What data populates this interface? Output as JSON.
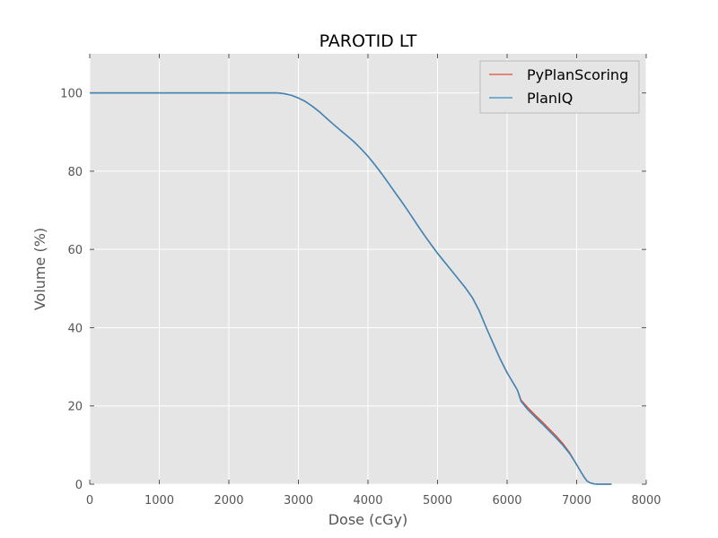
{
  "chart_data": {
    "type": "line",
    "title": "PAROTID LT",
    "xlabel": "Dose (cGy)",
    "ylabel": "Volume (%)",
    "xlim": [
      0,
      8000
    ],
    "ylim": [
      0,
      110
    ],
    "xticks": [
      0,
      1000,
      2000,
      3000,
      4000,
      5000,
      6000,
      7000,
      8000
    ],
    "yticks": [
      0,
      20,
      40,
      60,
      80,
      100
    ],
    "grid": true,
    "legend_position": "top-right",
    "series": [
      {
        "name": "PyPlanScoring",
        "color": "#e24a33",
        "x": [
          0,
          2700,
          2800,
          2900,
          3000,
          3100,
          3200,
          3300,
          3400,
          3500,
          3600,
          3700,
          3800,
          3900,
          4000,
          4100,
          4200,
          4300,
          4400,
          4500,
          4600,
          4700,
          4800,
          4900,
          5000,
          5100,
          5200,
          5300,
          5400,
          5500,
          5600,
          5700,
          5800,
          5900,
          6000,
          6100,
          6150,
          6200,
          6300,
          6400,
          6500,
          6600,
          6700,
          6800,
          6900,
          7000,
          7100,
          7150,
          7200,
          7250,
          7300,
          7400,
          7500
        ],
        "y": [
          100,
          100,
          99.8,
          99.4,
          98.7,
          97.8,
          96.6,
          95.2,
          93.6,
          92.0,
          90.5,
          89.0,
          87.5,
          85.7,
          83.8,
          81.6,
          79.3,
          76.8,
          74.3,
          71.8,
          69.2,
          66.5,
          63.9,
          61.4,
          59.0,
          56.8,
          54.6,
          52.4,
          50.2,
          47.7,
          44.3,
          40.0,
          36.0,
          32.0,
          28.5,
          25.5,
          24.0,
          21.5,
          19.5,
          17.7,
          16.0,
          14.2,
          12.4,
          10.4,
          8.0,
          5.0,
          2.0,
          0.8,
          0.3,
          0.1,
          0,
          0,
          0
        ]
      },
      {
        "name": "PlanIQ",
        "color": "#348abd",
        "x": [
          0,
          2700,
          2800,
          2900,
          3000,
          3100,
          3200,
          3300,
          3400,
          3500,
          3600,
          3700,
          3800,
          3900,
          4000,
          4100,
          4200,
          4300,
          4400,
          4500,
          4600,
          4700,
          4800,
          4900,
          5000,
          5100,
          5200,
          5300,
          5400,
          5500,
          5600,
          5700,
          5800,
          5900,
          6000,
          6100,
          6150,
          6200,
          6300,
          6400,
          6500,
          6600,
          6700,
          6800,
          6900,
          7000,
          7100,
          7150,
          7200,
          7250,
          7300,
          7400,
          7500
        ],
        "y": [
          100,
          100,
          99.8,
          99.4,
          98.7,
          97.8,
          96.6,
          95.2,
          93.6,
          92.0,
          90.5,
          89.0,
          87.5,
          85.7,
          83.8,
          81.6,
          79.3,
          76.8,
          74.3,
          71.8,
          69.2,
          66.5,
          63.9,
          61.4,
          59.0,
          56.8,
          54.6,
          52.4,
          50.2,
          47.7,
          44.3,
          40.0,
          36.0,
          32.0,
          28.5,
          25.5,
          24.0,
          21.2,
          19.0,
          17.2,
          15.5,
          13.7,
          11.9,
          10.0,
          7.8,
          5.0,
          2.0,
          0.8,
          0.3,
          0.1,
          0,
          0,
          0
        ]
      }
    ]
  }
}
